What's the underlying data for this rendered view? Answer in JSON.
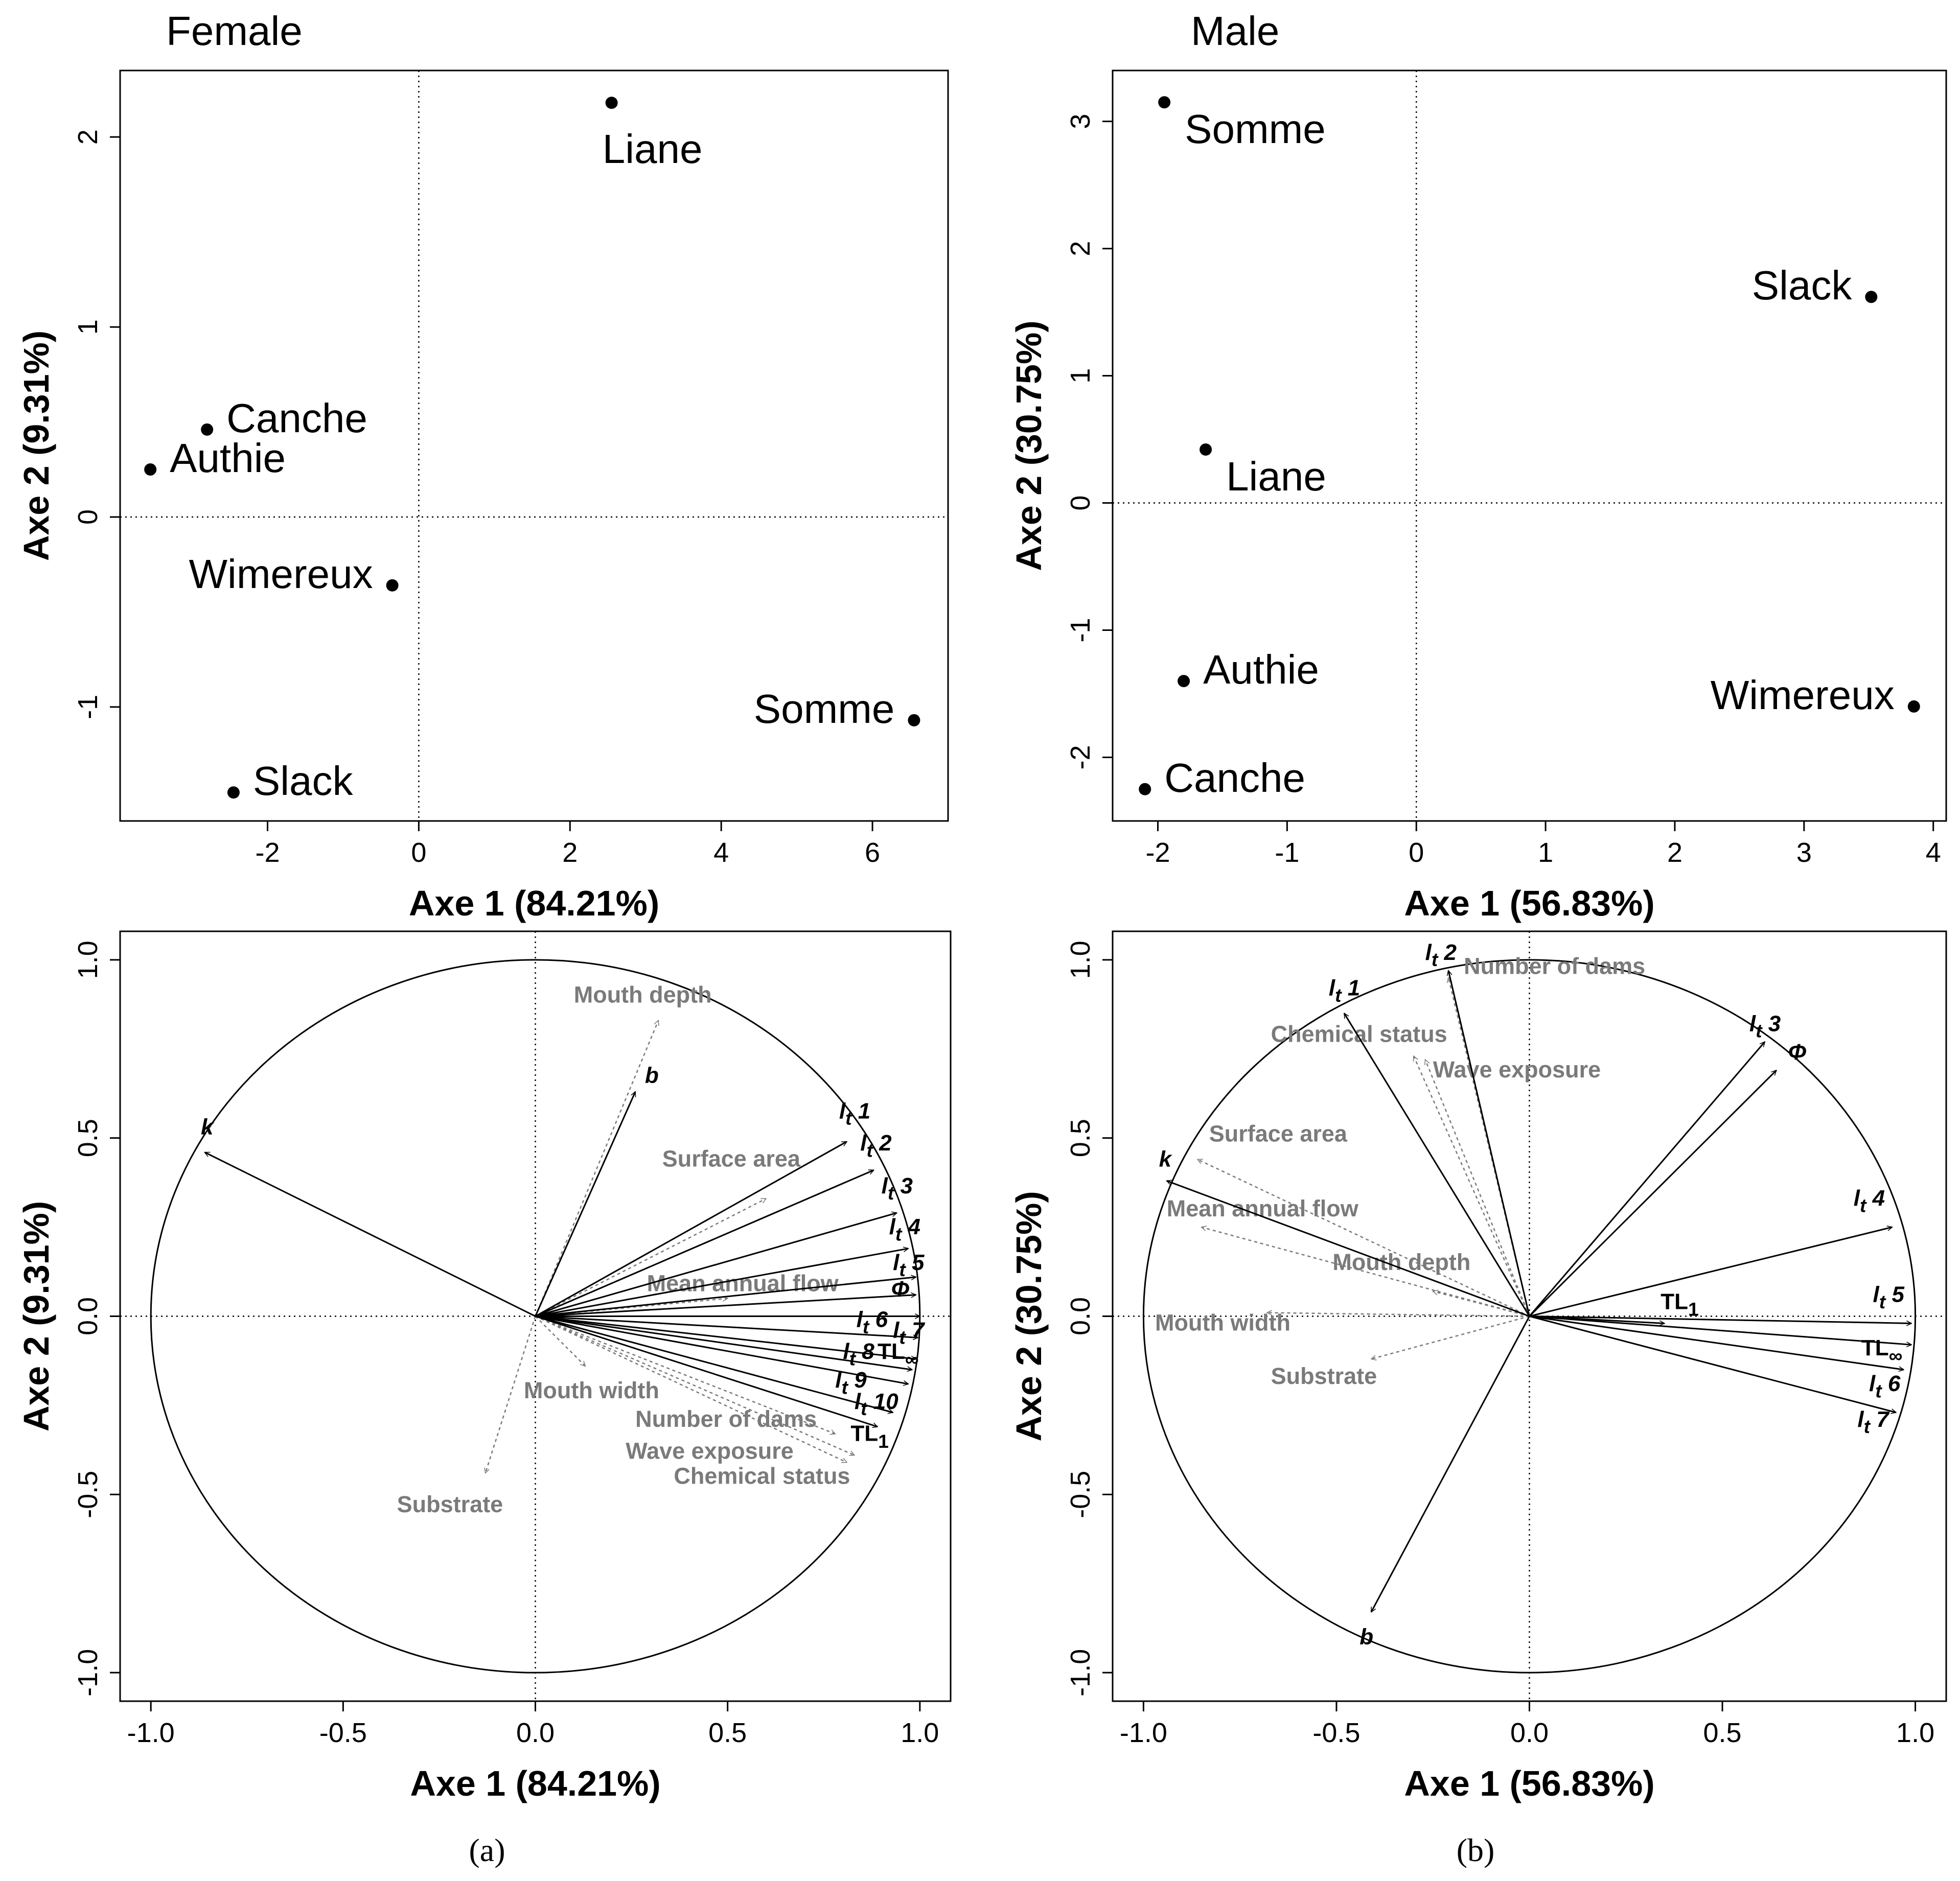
{
  "colors": {
    "ink": "#000000",
    "supplementary": "#7a7a7a",
    "background": "#ffffff"
  },
  "panel_labels": [
    "(a)",
    "(b)"
  ],
  "chart_data": [
    {
      "id": "female-scores",
      "type": "scatter",
      "title": "Female",
      "xlabel": "Axe 1 (84.21%)",
      "ylabel": "Axe 2 (9.31%)",
      "xlim": [
        -3.95,
        7.0
      ],
      "ylim": [
        -1.6,
        2.35
      ],
      "xticks": [
        -2,
        0,
        2,
        4,
        6
      ],
      "xtick_labels": [
        "-2",
        "0",
        "2",
        "4",
        "6"
      ],
      "yticks": [
        -1,
        0,
        1,
        2
      ],
      "ytick_labels": [
        "-1",
        "0",
        "1",
        "2"
      ],
      "points": [
        {
          "label": "Liane",
          "x": 2.55,
          "y": 2.18,
          "label_pos": "below"
        },
        {
          "label": "Canche",
          "x": -2.8,
          "y": 0.46,
          "label_pos": "right"
        },
        {
          "label": "Authie",
          "x": -3.55,
          "y": 0.25,
          "label_pos": "right"
        },
        {
          "label": "Wimereux",
          "x": -0.35,
          "y": -0.36,
          "label_pos": "left"
        },
        {
          "label": "Somme",
          "x": 6.55,
          "y": -1.07,
          "label_pos": "left"
        },
        {
          "label": "Slack",
          "x": -2.45,
          "y": -1.45,
          "label_pos": "right"
        }
      ]
    },
    {
      "id": "male-scores",
      "type": "scatter",
      "title": "Male",
      "xlabel": "Axe 1 (56.83%)",
      "ylabel": "Axe 2 (30.75%)",
      "xlim": [
        -2.35,
        4.1
      ],
      "ylim": [
        -2.5,
        3.4
      ],
      "xticks": [
        -2,
        -1,
        0,
        1,
        2,
        3,
        4
      ],
      "xtick_labels": [
        "-2",
        "-1",
        "0",
        "1",
        "2",
        "3",
        "4"
      ],
      "yticks": [
        -2,
        -1,
        0,
        1,
        2,
        3
      ],
      "ytick_labels": [
        "-2",
        "-1",
        "0",
        "1",
        "2",
        "3"
      ],
      "points": [
        {
          "label": "Somme",
          "x": -1.95,
          "y": 3.15,
          "label_pos": "below-right"
        },
        {
          "label": "Slack",
          "x": 3.52,
          "y": 1.62,
          "label_pos": "left"
        },
        {
          "label": "Liane",
          "x": -1.63,
          "y": 0.42,
          "label_pos": "below-right"
        },
        {
          "label": "Authie",
          "x": -1.8,
          "y": -1.4,
          "label_pos": "right"
        },
        {
          "label": "Wimereux",
          "x": 3.85,
          "y": -1.6,
          "label_pos": "left"
        },
        {
          "label": "Canche",
          "x": -2.1,
          "y": -2.25,
          "label_pos": "right"
        }
      ]
    },
    {
      "id": "female-correlation-circle",
      "type": "correlation-circle",
      "xlabel": "Axe 1 (84.21%)",
      "ylabel": "Axe 2 (9.31%)",
      "xlim": [
        -1.08,
        1.08
      ],
      "ylim": [
        -1.08,
        1.08
      ],
      "xticks": [
        -1,
        -0.5,
        0,
        0.5,
        1
      ],
      "xtick_labels": [
        "-1.0",
        "-0.5",
        "0.0",
        "0.5",
        "1.0"
      ],
      "yticks": [
        -1,
        -0.5,
        0,
        0.5,
        1
      ],
      "ytick_labels": [
        "-1.0",
        "-0.5",
        "0.0",
        "0.5",
        "1.0"
      ],
      "active_variables": [
        {
          "label": "k",
          "x": -0.86,
          "y": 0.46,
          "lx": -0.87,
          "ly": 0.51
        },
        {
          "label": "b",
          "x": 0.26,
          "y": 0.63,
          "lx": 0.285,
          "ly": 0.655
        },
        {
          "label": "lt 1",
          "x": 0.81,
          "y": 0.49,
          "lx": 0.79,
          "ly": 0.555
        },
        {
          "label": "lt 2",
          "x": 0.88,
          "y": 0.41,
          "lx": 0.845,
          "ly": 0.465
        },
        {
          "label": "lt 3",
          "x": 0.94,
          "y": 0.29,
          "lx": 0.9,
          "ly": 0.345
        },
        {
          "label": "lt 4",
          "x": 0.97,
          "y": 0.19,
          "lx": 0.92,
          "ly": 0.23
        },
        {
          "label": "lt 5",
          "x": 0.99,
          "y": 0.11,
          "lx": 0.93,
          "ly": 0.13
        },
        {
          "label": "Φ",
          "x": 0.99,
          "y": 0.06,
          "lx": 0.925,
          "ly": 0.055
        },
        {
          "label": "lt 6",
          "x": 1.0,
          "y": 0.0,
          "lx": 0.835,
          "ly": -0.03
        },
        {
          "label": "lt 7",
          "x": 0.995,
          "y": -0.06,
          "lx": 0.93,
          "ly": -0.06
        },
        {
          "label": "lt 8",
          "x": 0.99,
          "y": -0.12,
          "lx": 0.8,
          "ly": -0.12
        },
        {
          "label": "TL∞",
          "x": 0.98,
          "y": -0.15,
          "lx": 0.89,
          "ly": -0.12
        },
        {
          "label": "lt 9",
          "x": 0.97,
          "y": -0.19,
          "lx": 0.78,
          "ly": -0.2
        },
        {
          "label": "lt 10",
          "x": 0.93,
          "y": -0.27,
          "lx": 0.83,
          "ly": -0.26
        },
        {
          "label": "TL1",
          "x": 0.89,
          "y": -0.31,
          "lx": 0.82,
          "ly": -0.35
        }
      ],
      "supplementary_variables": [
        {
          "label": "Mouth depth",
          "x": 0.32,
          "y": 0.83,
          "lx": 0.1,
          "ly": 0.88
        },
        {
          "label": "Surface area",
          "x": 0.6,
          "y": 0.33,
          "lx": 0.33,
          "ly": 0.42
        },
        {
          "label": "Mean annual flow",
          "x": 0.5,
          "y": 0.05,
          "lx": 0.29,
          "ly": 0.07
        },
        {
          "label": "Mouth width",
          "x": 0.13,
          "y": -0.14,
          "lx": -0.03,
          "ly": -0.23
        },
        {
          "label": "Number of dams",
          "x": 0.78,
          "y": -0.33,
          "lx": 0.26,
          "ly": -0.31
        },
        {
          "label": "Wave exposure",
          "x": 0.81,
          "y": -0.41,
          "lx": 0.235,
          "ly": -0.4
        },
        {
          "label": "Chemical status",
          "x": 0.83,
          "y": -0.39,
          "lx": 0.36,
          "ly": -0.47
        },
        {
          "label": "Substrate",
          "x": -0.13,
          "y": -0.44,
          "lx": -0.36,
          "ly": -0.55
        }
      ]
    },
    {
      "id": "male-correlation-circle",
      "type": "correlation-circle",
      "xlabel": "Axe 1 (56.83%)",
      "ylabel": "Axe 2 (30.75%)",
      "xlim": [
        -1.08,
        1.08
      ],
      "ylim": [
        -1.08,
        1.08
      ],
      "xticks": [
        -1,
        -0.5,
        0,
        0.5,
        1
      ],
      "xtick_labels": [
        "-1.0",
        "-0.5",
        "0.0",
        "0.5",
        "1.0"
      ],
      "yticks": [
        -1,
        -0.5,
        0,
        0.5,
        1
      ],
      "ytick_labels": [
        "-1.0",
        "-0.5",
        "0.0",
        "0.5",
        "1.0"
      ],
      "active_variables": [
        {
          "label": "lt 1",
          "x": -0.48,
          "y": 0.85,
          "lx": -0.52,
          "ly": 0.9
        },
        {
          "label": "lt 2",
          "x": -0.21,
          "y": 0.97,
          "lx": -0.27,
          "ly": 1.0
        },
        {
          "label": "lt 3",
          "x": 0.61,
          "y": 0.77,
          "lx": 0.57,
          "ly": 0.8
        },
        {
          "label": "Φ",
          "x": 0.64,
          "y": 0.69,
          "lx": 0.67,
          "ly": 0.72
        },
        {
          "label": "k",
          "x": -0.94,
          "y": 0.38,
          "lx": -0.96,
          "ly": 0.42
        },
        {
          "label": "lt 4",
          "x": 0.94,
          "y": 0.25,
          "lx": 0.84,
          "ly": 0.31
        },
        {
          "label": "TL1",
          "x": 0.35,
          "y": -0.02,
          "lx": 0.34,
          "ly": 0.02
        },
        {
          "label": "lt 5",
          "x": 0.99,
          "y": -0.02,
          "lx": 0.89,
          "ly": 0.04
        },
        {
          "label": "TL∞",
          "x": 0.99,
          "y": -0.08,
          "lx": 0.86,
          "ly": -0.11
        },
        {
          "label": "lt 6",
          "x": 0.97,
          "y": -0.15,
          "lx": 0.88,
          "ly": -0.21
        },
        {
          "label": "lt 7",
          "x": 0.95,
          "y": -0.27,
          "lx": 0.85,
          "ly": -0.31
        },
        {
          "label": "b",
          "x": -0.41,
          "y": -0.83,
          "lx": -0.44,
          "ly": -0.92
        }
      ],
      "supplementary_variables": [
        {
          "label": "Number of dams",
          "x": -0.21,
          "y": 0.95,
          "lx": -0.17,
          "ly": 0.96
        },
        {
          "label": "Chemical status",
          "x": -0.3,
          "y": 0.73,
          "lx": -0.67,
          "ly": 0.77
        },
        {
          "label": "Wave exposure",
          "x": -0.27,
          "y": 0.72,
          "lx": -0.25,
          "ly": 0.67
        },
        {
          "label": "Surface area",
          "x": -0.86,
          "y": 0.44,
          "lx": -0.83,
          "ly": 0.49
        },
        {
          "label": "Mean annual flow",
          "x": -0.85,
          "y": 0.25,
          "lx": -0.94,
          "ly": 0.28
        },
        {
          "label": "Mouth depth",
          "x": -0.25,
          "y": 0.07,
          "lx": -0.51,
          "ly": 0.13
        },
        {
          "label": "Mouth width",
          "x": -0.68,
          "y": 0.01,
          "lx": -0.97,
          "ly": -0.04
        },
        {
          "label": "Substrate",
          "x": -0.41,
          "y": -0.12,
          "lx": -0.67,
          "ly": -0.19
        }
      ]
    }
  ]
}
